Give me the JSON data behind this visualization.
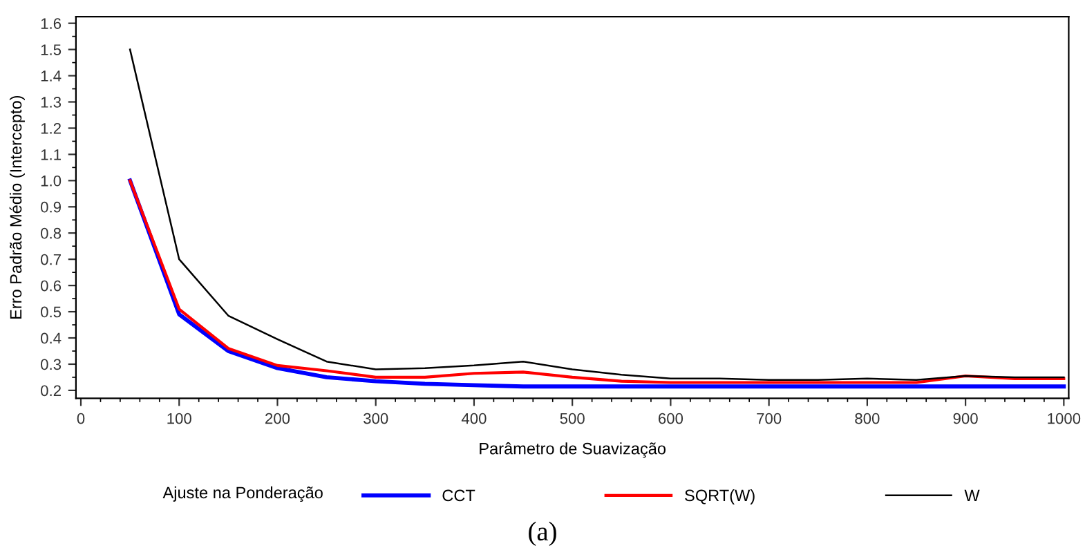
{
  "chart_data": {
    "type": "line",
    "xlabel": "Parâmetro de Suavização",
    "ylabel": "Erro Padrão Médio (Intercepto)",
    "legend_title": "Ajuste na Ponderação",
    "legend": "bottom",
    "grid": false,
    "marker": "none",
    "line_style": "solid",
    "x": [
      50,
      100,
      150,
      200,
      250,
      300,
      350,
      400,
      450,
      500,
      550,
      600,
      650,
      700,
      750,
      800,
      850,
      900,
      950,
      1000
    ],
    "xlim": [
      -5,
      1005
    ],
    "xticks": [
      0,
      100,
      200,
      300,
      400,
      500,
      600,
      700,
      800,
      900,
      1000
    ],
    "ylim": [
      0.17,
      1.625
    ],
    "yticks": [
      {
        "value": 0.2,
        "label": "0.2"
      },
      {
        "value": 0.3,
        "label": "0.3"
      },
      {
        "value": 0.4,
        "label": "0.4"
      },
      {
        "value": 0.5,
        "label": "0.5"
      },
      {
        "value": 0.6,
        "label": "0.6"
      },
      {
        "value": 0.7,
        "label": "0.7"
      },
      {
        "value": 0.8,
        "label": "0.8"
      },
      {
        "value": 0.9,
        "label": "0.9"
      },
      {
        "value": 1.0,
        "label": "1.0"
      },
      {
        "value": 1.1,
        "label": "1.1"
      },
      {
        "value": 1.2,
        "label": "1.2"
      },
      {
        "value": 1.3,
        "label": "1.3"
      },
      {
        "value": 1.4,
        "label": "1.4"
      },
      {
        "value": 1.5,
        "label": "1.5"
      },
      {
        "value": 1.6,
        "label": "1.6"
      }
    ],
    "series": [
      {
        "name": "CCT",
        "color": "#0000ff",
        "values": [
          1.0,
          0.49,
          0.35,
          0.285,
          0.25,
          0.235,
          0.225,
          0.22,
          0.215,
          0.215,
          0.215,
          0.215,
          0.215,
          0.215,
          0.215,
          0.215,
          0.215,
          0.215,
          0.215,
          0.215
        ]
      },
      {
        "name": "SQRT(W)",
        "color": "#ff0000",
        "values": [
          1.0,
          0.51,
          0.36,
          0.295,
          0.275,
          0.25,
          0.25,
          0.265,
          0.27,
          0.25,
          0.235,
          0.23,
          0.23,
          0.23,
          0.23,
          0.23,
          0.23,
          0.255,
          0.245,
          0.245
        ]
      },
      {
        "name": "W",
        "color": "#000000",
        "values": [
          1.5,
          0.7,
          0.485,
          0.395,
          0.31,
          0.28,
          0.285,
          0.295,
          0.31,
          0.28,
          0.26,
          0.245,
          0.245,
          0.24,
          0.24,
          0.245,
          0.24,
          0.255,
          0.25,
          0.25
        ]
      }
    ],
    "annotations": [
      "(a)"
    ]
  }
}
